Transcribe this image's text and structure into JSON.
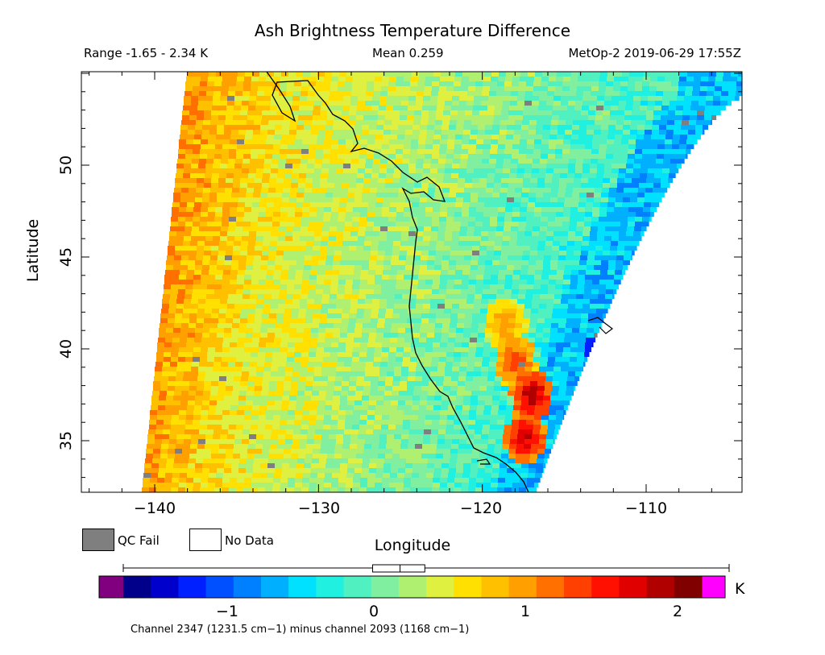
{
  "chart_data": {
    "type": "heatmap",
    "title": "Ash Brightness Temperature Difference",
    "range_text": "Range -1.65 - 2.34 K",
    "mean_text": "Mean 0.259",
    "satellite_text": "MetOp-2 2019-06-29 17:55Z",
    "xlabel": "Longitude",
    "ylabel": "Latitude",
    "xlim": [
      -145,
      -104
    ],
    "ylim": [
      32.5,
      55
    ],
    "x_ticks": [
      "−140",
      "−130",
      "−120",
      "−110"
    ],
    "x_tick_values": [
      -140,
      -130,
      -120,
      -110
    ],
    "y_ticks": [
      "50",
      "45",
      "40",
      "35"
    ],
    "y_tick_values": [
      50,
      45,
      40,
      35
    ],
    "legend": [
      {
        "label": "QC Fail",
        "color": "#7f7f7f"
      },
      {
        "label": "No Data",
        "color": "#ffffff"
      }
    ],
    "colorbar": {
      "min": -1.65,
      "max": 2.34,
      "unit": "K",
      "tick_labels": [
        "−1",
        "0",
        "1",
        "2"
      ],
      "tick_values": [
        -1,
        0,
        1,
        2
      ],
      "under_color": "#800080",
      "over_color": "#ff00ff",
      "colors": [
        "#00008b",
        "#0000cd",
        "#0020ff",
        "#0050ff",
        "#0080ff",
        "#00b0ff",
        "#00e0ff",
        "#20f0e0",
        "#50f0c0",
        "#80f0a0",
        "#b0f070",
        "#e0f040",
        "#ffe000",
        "#ffc000",
        "#ffa000",
        "#ff7000",
        "#ff4000",
        "#ff1000",
        "#e00000",
        "#b00000",
        "#800000"
      ],
      "mean_marker": 0.259,
      "stats_box": [
        0.07,
        0.43
      ]
    },
    "hotspots": [
      {
        "lon": -117.2,
        "lat": 37.6,
        "value": 2.2
      },
      {
        "lon": -117.6,
        "lat": 35.3,
        "value": 2.1
      },
      {
        "lon": -118.2,
        "lat": 39.4,
        "value": 1.6
      },
      {
        "lon": -118.8,
        "lat": 41.5,
        "value": 1.2
      }
    ],
    "coldspots": [
      {
        "lon": -113.3,
        "lat": 40.2,
        "value": -1.5
      }
    ],
    "caption": "Channel 2347 (1231.5 cm−1) minus channel 2093 (1168 cm−1)"
  }
}
